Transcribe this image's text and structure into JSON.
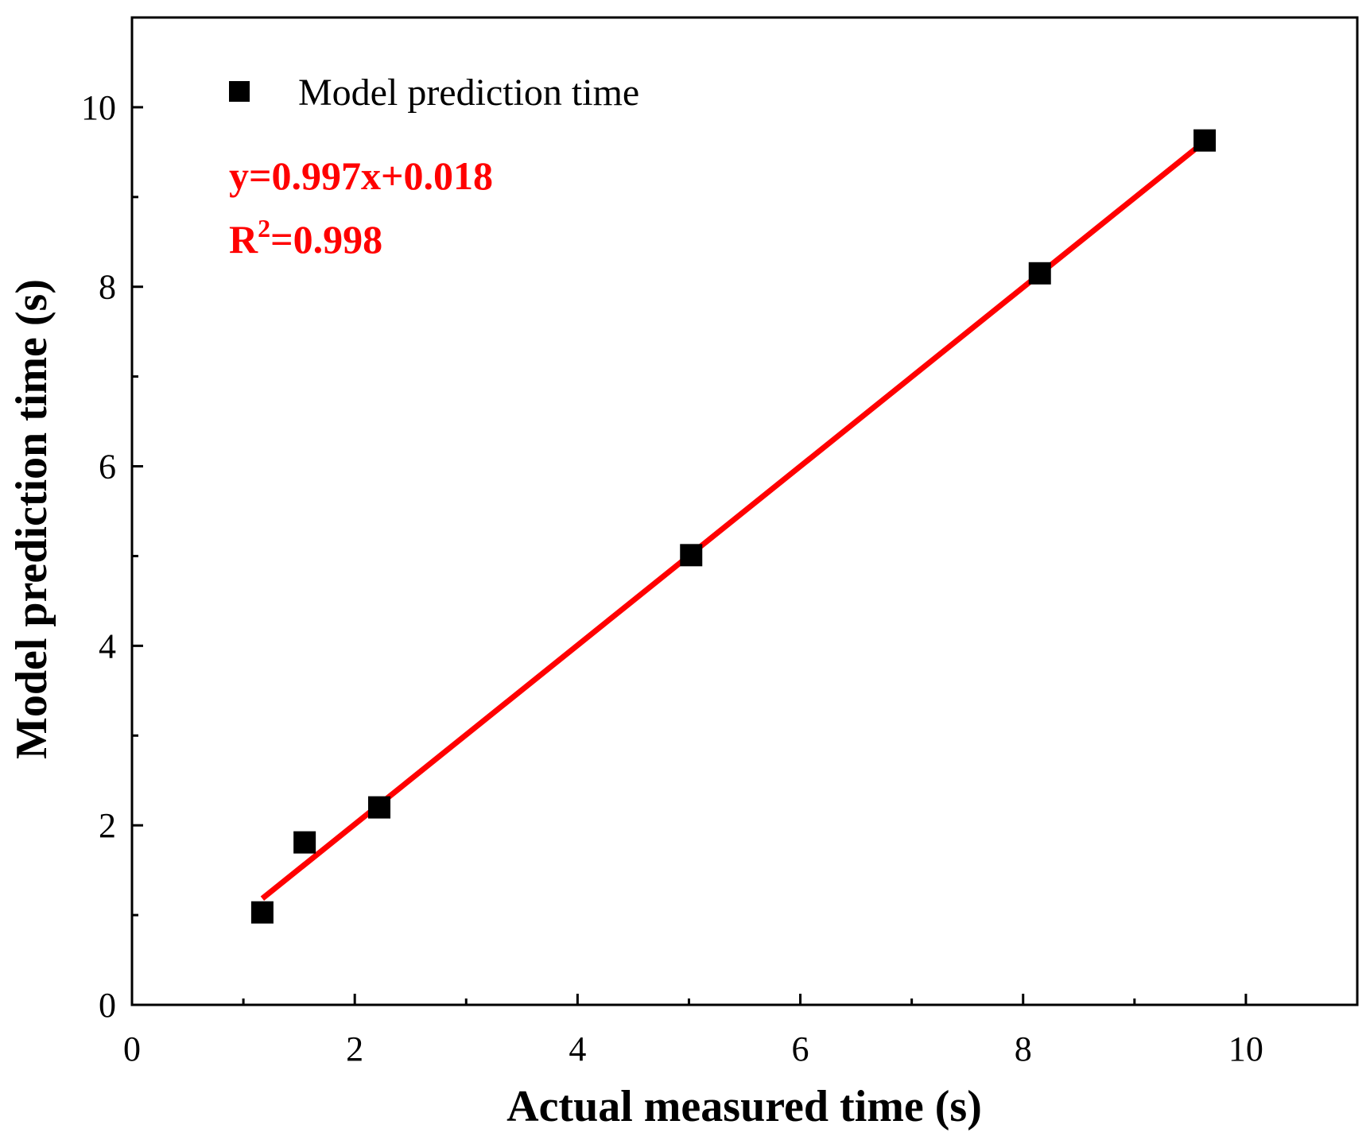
{
  "chart_data": {
    "type": "scatter",
    "title": "",
    "xlabel": "Actual measured time (s)",
    "ylabel": "Model prediction time (s)",
    "xlim": [
      0,
      11
    ],
    "ylim": [
      0,
      11
    ],
    "x_major_ticks": [
      0,
      2,
      4,
      6,
      8,
      10
    ],
    "x_minor_ticks": [
      1,
      3,
      5,
      7,
      9
    ],
    "y_major_ticks": [
      0,
      2,
      4,
      6,
      8,
      10
    ],
    "y_minor_ticks": [
      1,
      3,
      5,
      7,
      9
    ],
    "x_tick_labels": [
      "0",
      "2",
      "4",
      "6",
      "8",
      "10"
    ],
    "y_tick_labels": [
      "0",
      "2",
      "4",
      "6",
      "8",
      "10"
    ],
    "grid": false,
    "legend": {
      "position": "top-left",
      "entries": [
        {
          "label": "Model prediction time",
          "marker": "square",
          "color": "#000000"
        }
      ]
    },
    "series": [
      {
        "name": "Model prediction time",
        "marker": "square",
        "color": "#000000",
        "x": [
          1.17,
          1.55,
          2.22,
          5.02,
          8.15,
          9.63
        ],
        "y": [
          1.03,
          1.81,
          2.2,
          5.01,
          8.15,
          9.63
        ]
      }
    ],
    "fit": {
      "slope": 0.997,
      "intercept": 0.018,
      "x_range": [
        1.17,
        9.63
      ],
      "color": "#ff0000",
      "equation": "y=0.997x+0.018",
      "r2_prefix": "R",
      "r2_sup": "2",
      "r2_value": "=0.998"
    }
  },
  "colors": {
    "axis": "#000000",
    "fit_line": "#ff0000",
    "annotation": "#ff0000",
    "marker": "#000000"
  }
}
